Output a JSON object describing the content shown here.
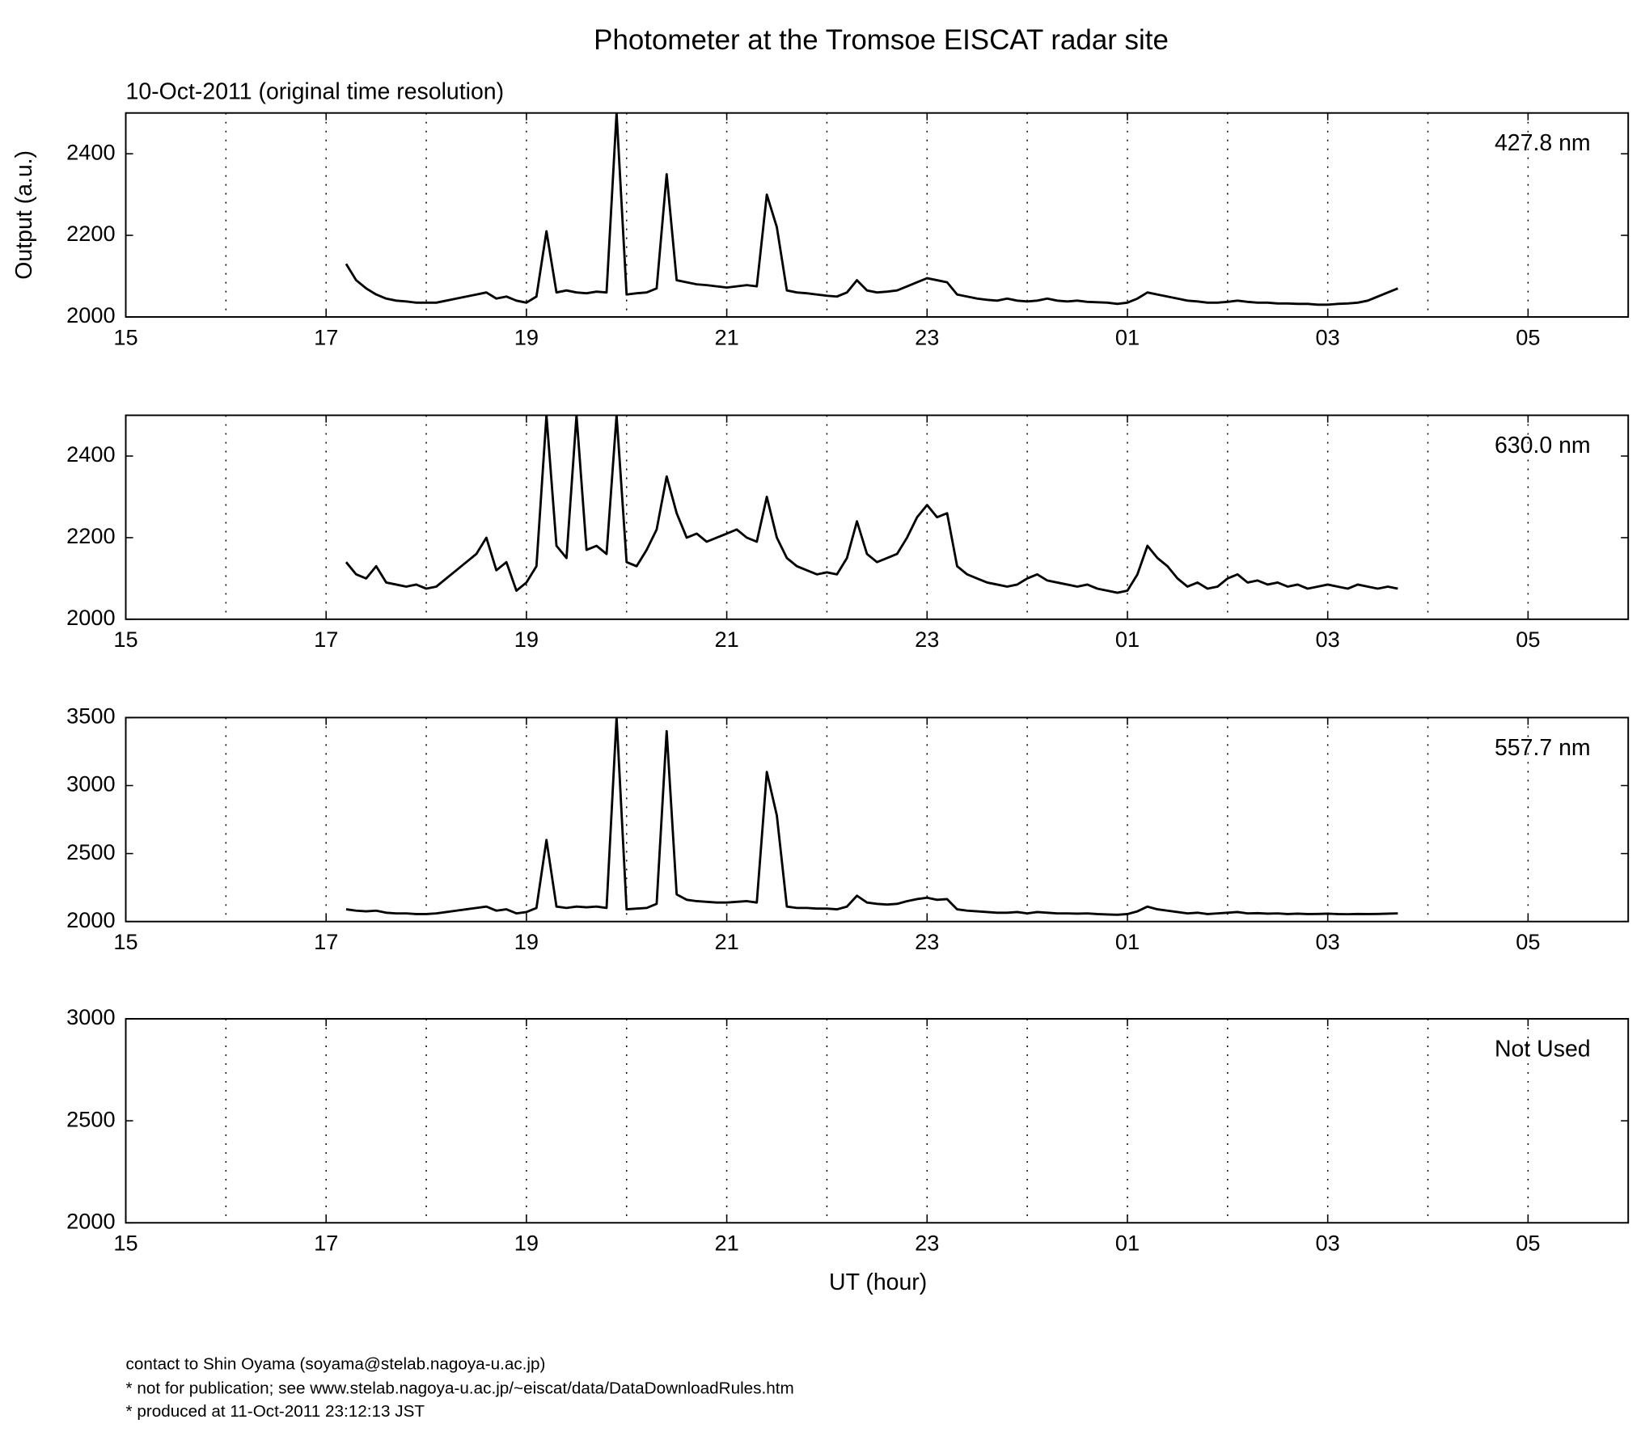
{
  "title": "Photometer at the Tromsoe EISCAT radar site",
  "subtitle": "10-Oct-2011 (original time resolution)",
  "footer": [
    "contact to Shin Oyama (soyama@stelab.nagoya-u.ac.jp)",
    "* not for publication; see www.stelab.nagoya-u.ac.jp/~eiscat/data/DataDownloadRules.htm",
    "* produced at 11-Oct-2011 23:12:13 JST"
  ],
  "chart_data": [
    {
      "type": "line",
      "ylabel": "Output (a.u.)",
      "x": [
        17.2,
        17.3,
        17.4,
        17.5,
        17.6,
        17.7,
        17.8,
        17.9,
        18.0,
        18.1,
        18.2,
        18.3,
        18.4,
        18.5,
        18.6,
        18.7,
        18.8,
        18.9,
        19.0,
        19.1,
        19.2,
        19.3,
        19.4,
        19.5,
        19.6,
        19.7,
        19.8,
        19.9,
        20.0,
        20.1,
        20.2,
        20.3,
        20.4,
        20.5,
        20.6,
        20.7,
        20.8,
        20.9,
        21.0,
        21.1,
        21.2,
        21.3,
        21.4,
        21.5,
        21.6,
        21.7,
        21.8,
        21.9,
        22.0,
        22.1,
        22.2,
        22.3,
        22.4,
        22.5,
        22.6,
        22.7,
        22.8,
        22.9,
        23.0,
        23.1,
        23.2,
        23.3,
        23.4,
        23.5,
        23.6,
        23.7,
        23.8,
        23.9,
        24.0,
        24.1,
        24.2,
        24.3,
        24.4,
        24.5,
        24.6,
        24.7,
        24.8,
        24.9,
        25.0,
        25.1,
        25.2,
        25.3,
        25.4,
        25.5,
        25.6,
        25.7,
        25.8,
        25.9,
        26.0,
        26.1,
        26.2,
        26.3,
        26.4,
        26.5,
        26.6,
        26.7,
        26.8,
        26.9,
        27.0,
        27.1,
        27.2,
        27.3,
        27.4,
        27.5,
        27.6,
        27.7
      ],
      "series": [
        {
          "name": "427.8 nm",
          "color": "#000000",
          "values": [
            2130,
            2090,
            2070,
            2055,
            2045,
            2040,
            2038,
            2035,
            2035,
            2035,
            2040,
            2045,
            2050,
            2055,
            2060,
            2045,
            2050,
            2040,
            2035,
            2050,
            2210,
            2060,
            2065,
            2060,
            2058,
            2062,
            2060,
            2500,
            2055,
            2058,
            2060,
            2070,
            2350,
            2090,
            2085,
            2080,
            2078,
            2075,
            2072,
            2075,
            2078,
            2075,
            2300,
            2220,
            2065,
            2060,
            2058,
            2055,
            2052,
            2050,
            2060,
            2090,
            2065,
            2060,
            2062,
            2065,
            2075,
            2085,
            2095,
            2090,
            2085,
            2055,
            2050,
            2045,
            2042,
            2040,
            2045,
            2040,
            2038,
            2040,
            2045,
            2040,
            2038,
            2040,
            2037,
            2036,
            2035,
            2032,
            2035,
            2045,
            2060,
            2055,
            2050,
            2045,
            2040,
            2038,
            2035,
            2035,
            2037,
            2040,
            2037,
            2035,
            2035,
            2033,
            2033,
            2032,
            2032,
            2030,
            2030,
            2032,
            2033,
            2035,
            2040,
            2050,
            2060,
            2070
          ]
        }
      ],
      "xlim": [
        15,
        30
      ],
      "xticks": [
        15,
        17,
        19,
        21,
        23,
        {
          "value": 25,
          "label": "01"
        },
        {
          "value": 27,
          "label": "03"
        },
        {
          "value": 29,
          "label": "05"
        }
      ],
      "xgrid": [
        16,
        17,
        18,
        19,
        20,
        21,
        22,
        23,
        24,
        25,
        26,
        27,
        28,
        29
      ],
      "ylim": [
        2000,
        2500
      ],
      "yticks": [
        2000,
        2200,
        2400
      ]
    },
    {
      "type": "line",
      "x": [
        17.2,
        17.3,
        17.4,
        17.5,
        17.6,
        17.7,
        17.8,
        17.9,
        18.0,
        18.1,
        18.2,
        18.3,
        18.4,
        18.5,
        18.6,
        18.7,
        18.8,
        18.9,
        19.0,
        19.1,
        19.2,
        19.3,
        19.4,
        19.5,
        19.6,
        19.7,
        19.8,
        19.9,
        20.0,
        20.1,
        20.2,
        20.3,
        20.4,
        20.5,
        20.6,
        20.7,
        20.8,
        20.9,
        21.0,
        21.1,
        21.2,
        21.3,
        21.4,
        21.5,
        21.6,
        21.7,
        21.8,
        21.9,
        22.0,
        22.1,
        22.2,
        22.3,
        22.4,
        22.5,
        22.6,
        22.7,
        22.8,
        22.9,
        23.0,
        23.1,
        23.2,
        23.3,
        23.4,
        23.5,
        23.6,
        23.7,
        23.8,
        23.9,
        24.0,
        24.1,
        24.2,
        24.3,
        24.4,
        24.5,
        24.6,
        24.7,
        24.8,
        24.9,
        25.0,
        25.1,
        25.2,
        25.3,
        25.4,
        25.5,
        25.6,
        25.7,
        25.8,
        25.9,
        26.0,
        26.1,
        26.2,
        26.3,
        26.4,
        26.5,
        26.6,
        26.7,
        26.8,
        26.9,
        27.0,
        27.1,
        27.2,
        27.3,
        27.4,
        27.5,
        27.6,
        27.7
      ],
      "series": [
        {
          "name": "630.0 nm",
          "color": "#000000",
          "values": [
            2140,
            2110,
            2100,
            2130,
            2090,
            2085,
            2080,
            2085,
            2075,
            2080,
            2100,
            2120,
            2140,
            2160,
            2200,
            2120,
            2140,
            2070,
            2090,
            2130,
            2500,
            2180,
            2150,
            2500,
            2170,
            2180,
            2160,
            2500,
            2140,
            2130,
            2170,
            2220,
            2350,
            2260,
            2200,
            2210,
            2190,
            2200,
            2210,
            2220,
            2200,
            2190,
            2300,
            2200,
            2150,
            2130,
            2120,
            2110,
            2115,
            2110,
            2150,
            2240,
            2160,
            2140,
            2150,
            2160,
            2200,
            2250,
            2280,
            2250,
            2260,
            2130,
            2110,
            2100,
            2090,
            2085,
            2080,
            2085,
            2100,
            2110,
            2095,
            2090,
            2085,
            2080,
            2085,
            2075,
            2070,
            2065,
            2070,
            2110,
            2180,
            2150,
            2130,
            2100,
            2080,
            2090,
            2075,
            2080,
            2100,
            2110,
            2090,
            2095,
            2085,
            2090,
            2080,
            2085,
            2075,
            2080,
            2085,
            2080,
            2075,
            2085,
            2080,
            2075,
            2080,
            2075
          ]
        }
      ],
      "xlim": [
        15,
        30
      ],
      "xticks": [
        15,
        17,
        19,
        21,
        23,
        {
          "value": 25,
          "label": "01"
        },
        {
          "value": 27,
          "label": "03"
        },
        {
          "value": 29,
          "label": "05"
        }
      ],
      "xgrid": [
        16,
        17,
        18,
        19,
        20,
        21,
        22,
        23,
        24,
        25,
        26,
        27,
        28,
        29
      ],
      "ylim": [
        2000,
        2500
      ],
      "yticks": [
        2000,
        2200,
        2400
      ]
    },
    {
      "type": "line",
      "x": [
        17.2,
        17.3,
        17.4,
        17.5,
        17.6,
        17.7,
        17.8,
        17.9,
        18.0,
        18.1,
        18.2,
        18.3,
        18.4,
        18.5,
        18.6,
        18.7,
        18.8,
        18.9,
        19.0,
        19.1,
        19.2,
        19.3,
        19.4,
        19.5,
        19.6,
        19.7,
        19.8,
        19.9,
        20.0,
        20.1,
        20.2,
        20.3,
        20.4,
        20.5,
        20.6,
        20.7,
        20.8,
        20.9,
        21.0,
        21.1,
        21.2,
        21.3,
        21.4,
        21.5,
        21.6,
        21.7,
        21.8,
        21.9,
        22.0,
        22.1,
        22.2,
        22.3,
        22.4,
        22.5,
        22.6,
        22.7,
        22.8,
        22.9,
        23.0,
        23.1,
        23.2,
        23.3,
        23.4,
        23.5,
        23.6,
        23.7,
        23.8,
        23.9,
        24.0,
        24.1,
        24.2,
        24.3,
        24.4,
        24.5,
        24.6,
        24.7,
        24.8,
        24.9,
        25.0,
        25.1,
        25.2,
        25.3,
        25.4,
        25.5,
        25.6,
        25.7,
        25.8,
        25.9,
        26.0,
        26.1,
        26.2,
        26.3,
        26.4,
        26.5,
        26.6,
        26.7,
        26.8,
        26.9,
        27.0,
        27.1,
        27.2,
        27.3,
        27.4,
        27.5,
        27.6,
        27.7
      ],
      "series": [
        {
          "name": "557.7 nm",
          "color": "#000000",
          "values": [
            2090,
            2080,
            2075,
            2080,
            2065,
            2060,
            2060,
            2055,
            2055,
            2060,
            2070,
            2080,
            2090,
            2100,
            2110,
            2080,
            2090,
            2060,
            2070,
            2100,
            2600,
            2110,
            2100,
            2110,
            2105,
            2110,
            2100,
            3500,
            2090,
            2095,
            2100,
            2130,
            3400,
            2200,
            2160,
            2150,
            2145,
            2140,
            2140,
            2145,
            2150,
            2140,
            3100,
            2780,
            2110,
            2100,
            2100,
            2095,
            2095,
            2090,
            2110,
            2190,
            2140,
            2130,
            2125,
            2130,
            2150,
            2165,
            2175,
            2160,
            2165,
            2090,
            2080,
            2075,
            2070,
            2065,
            2065,
            2070,
            2060,
            2070,
            2065,
            2060,
            2060,
            2058,
            2060,
            2055,
            2052,
            2050,
            2055,
            2075,
            2110,
            2090,
            2080,
            2070,
            2060,
            2065,
            2055,
            2060,
            2065,
            2070,
            2060,
            2062,
            2058,
            2060,
            2055,
            2058,
            2055,
            2056,
            2058,
            2055,
            2054,
            2056,
            2055,
            2056,
            2058,
            2060
          ]
        }
      ],
      "xlim": [
        15,
        30
      ],
      "xticks": [
        15,
        17,
        19,
        21,
        23,
        {
          "value": 25,
          "label": "01"
        },
        {
          "value": 27,
          "label": "03"
        },
        {
          "value": 29,
          "label": "05"
        }
      ],
      "xgrid": [
        16,
        17,
        18,
        19,
        20,
        21,
        22,
        23,
        24,
        25,
        26,
        27,
        28,
        29
      ],
      "ylim": [
        2000,
        3500
      ],
      "yticks": [
        2000,
        2500,
        3000,
        3500
      ]
    },
    {
      "type": "line",
      "annotation": "Not Used",
      "xlabel": "UT (hour)",
      "xlim": [
        15,
        30
      ],
      "xticks": [
        15,
        17,
        19,
        21,
        23,
        {
          "value": 25,
          "label": "01"
        },
        {
          "value": 27,
          "label": "03"
        },
        {
          "value": 29,
          "label": "05"
        }
      ],
      "xgrid": [
        16,
        17,
        18,
        19,
        20,
        21,
        22,
        23,
        24,
        25,
        26,
        27,
        28,
        29
      ],
      "ylim": [
        2000,
        3000
      ],
      "yticks": [
        2000,
        2500,
        3000
      ]
    }
  ]
}
